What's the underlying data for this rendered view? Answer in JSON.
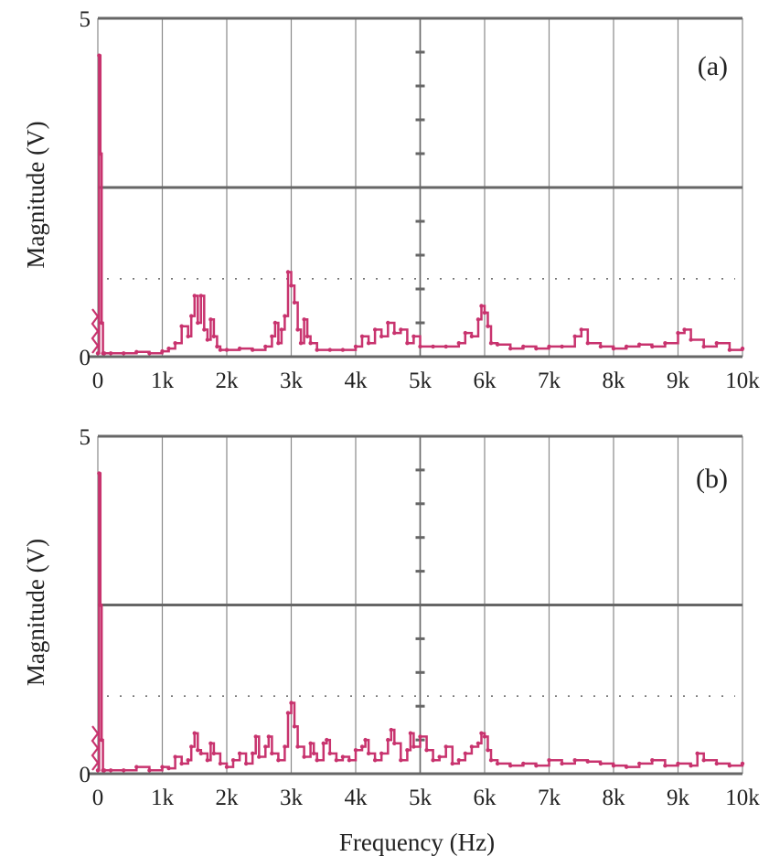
{
  "colors": {
    "trace": "#c8336e",
    "grid": "#8a8a8a",
    "frame": "#666666",
    "text": "#222222"
  },
  "xlabel": "Frequency (Hz)",
  "chart_data": [
    {
      "type": "line",
      "panel_label": "(a)",
      "ylabel": "Magnitude (V)",
      "xlabel": "",
      "x_tick_labels": [
        "0",
        "1k",
        "2k",
        "3k",
        "4k",
        "5k",
        "6k",
        "7k",
        "8k",
        "9k",
        "10k"
      ],
      "y_tick_labels": [
        "0",
        "5"
      ],
      "xlim": [
        0,
        10000
      ],
      "ylim": [
        0,
        5
      ],
      "grid": true,
      "dotted_reference_level": 1.15,
      "series": [
        {
          "x": [
            0,
            20,
            40,
            60,
            80,
            100,
            200,
            400,
            600,
            800,
            1000,
            1100,
            1200,
            1300,
            1400,
            1450,
            1500,
            1550,
            1600,
            1650,
            1700,
            1750,
            1800,
            1850,
            1900,
            2000,
            2200,
            2400,
            2600,
            2700,
            2750,
            2800,
            2850,
            2900,
            2950,
            3000,
            3050,
            3100,
            3150,
            3200,
            3250,
            3300,
            3400,
            3600,
            3800,
            4000,
            4100,
            4200,
            4300,
            4400,
            4500,
            4600,
            4700,
            4800,
            4900,
            5000,
            5200,
            5400,
            5600,
            5700,
            5800,
            5900,
            5950,
            6000,
            6050,
            6100,
            6200,
            6400,
            6600,
            6800,
            7000,
            7200,
            7400,
            7500,
            7600,
            7800,
            8000,
            8200,
            8400,
            8600,
            8800,
            9000,
            9100,
            9200,
            9400,
            9600,
            9800,
            10000
          ],
          "y": [
            0.05,
            4.45,
            3.0,
            0.5,
            0.05,
            0.05,
            0.05,
            0.05,
            0.07,
            0.05,
            0.08,
            0.12,
            0.2,
            0.45,
            0.3,
            0.6,
            0.9,
            0.5,
            0.9,
            0.4,
            0.25,
            0.55,
            0.3,
            0.15,
            0.1,
            0.1,
            0.12,
            0.1,
            0.15,
            0.3,
            0.5,
            0.2,
            0.4,
            0.6,
            1.25,
            1.05,
            0.8,
            0.4,
            0.2,
            0.55,
            0.3,
            0.2,
            0.1,
            0.1,
            0.1,
            0.15,
            0.3,
            0.2,
            0.4,
            0.3,
            0.5,
            0.35,
            0.4,
            0.2,
            0.3,
            0.15,
            0.15,
            0.15,
            0.2,
            0.35,
            0.3,
            0.55,
            0.75,
            0.65,
            0.45,
            0.2,
            0.18,
            0.12,
            0.15,
            0.12,
            0.15,
            0.15,
            0.3,
            0.4,
            0.2,
            0.15,
            0.12,
            0.15,
            0.18,
            0.15,
            0.2,
            0.35,
            0.4,
            0.25,
            0.15,
            0.2,
            0.1,
            0.12
          ]
        }
      ]
    },
    {
      "type": "line",
      "panel_label": "(b)",
      "ylabel": "Magnitude (V)",
      "xlabel": "Frequency (Hz)",
      "x_tick_labels": [
        "0",
        "1k",
        "2k",
        "3k",
        "4k",
        "5k",
        "6k",
        "7k",
        "8k",
        "9k",
        "10k"
      ],
      "y_tick_labels": [
        "0",
        "5"
      ],
      "xlim": [
        0,
        10000
      ],
      "ylim": [
        0,
        5
      ],
      "grid": true,
      "dotted_reference_level": 1.15,
      "series": [
        {
          "x": [
            0,
            20,
            40,
            60,
            80,
            100,
            200,
            400,
            600,
            800,
            1000,
            1100,
            1200,
            1300,
            1400,
            1450,
            1500,
            1550,
            1600,
            1700,
            1750,
            1800,
            1900,
            2000,
            2100,
            2200,
            2300,
            2400,
            2450,
            2500,
            2600,
            2650,
            2700,
            2800,
            2900,
            2950,
            3000,
            3050,
            3100,
            3200,
            3300,
            3350,
            3400,
            3500,
            3550,
            3600,
            3700,
            3800,
            3900,
            4000,
            4100,
            4150,
            4200,
            4300,
            4400,
            4500,
            4550,
            4600,
            4700,
            4800,
            4850,
            4900,
            5000,
            5100,
            5200,
            5300,
            5400,
            5500,
            5600,
            5700,
            5800,
            5900,
            5950,
            6000,
            6050,
            6100,
            6200,
            6400,
            6600,
            6800,
            7000,
            7200,
            7400,
            7600,
            7800,
            8000,
            8200,
            8400,
            8600,
            8800,
            9000,
            9200,
            9300,
            9400,
            9600,
            9800,
            10000
          ],
          "y": [
            0.05,
            4.45,
            2.5,
            0.5,
            0.05,
            0.05,
            0.05,
            0.05,
            0.1,
            0.05,
            0.1,
            0.08,
            0.25,
            0.15,
            0.2,
            0.4,
            0.6,
            0.35,
            0.3,
            0.2,
            0.45,
            0.3,
            0.15,
            0.1,
            0.2,
            0.3,
            0.15,
            0.3,
            0.55,
            0.25,
            0.4,
            0.55,
            0.3,
            0.2,
            0.4,
            0.9,
            1.05,
            0.7,
            0.4,
            0.25,
            0.45,
            0.3,
            0.2,
            0.45,
            0.5,
            0.3,
            0.2,
            0.25,
            0.2,
            0.35,
            0.4,
            0.5,
            0.3,
            0.2,
            0.3,
            0.5,
            0.65,
            0.45,
            0.2,
            0.35,
            0.6,
            0.4,
            0.55,
            0.35,
            0.2,
            0.25,
            0.4,
            0.15,
            0.2,
            0.3,
            0.4,
            0.45,
            0.6,
            0.55,
            0.35,
            0.2,
            0.15,
            0.12,
            0.15,
            0.12,
            0.2,
            0.15,
            0.2,
            0.18,
            0.15,
            0.12,
            0.1,
            0.15,
            0.2,
            0.12,
            0.15,
            0.12,
            0.3,
            0.2,
            0.15,
            0.12,
            0.15
          ]
        }
      ]
    }
  ]
}
